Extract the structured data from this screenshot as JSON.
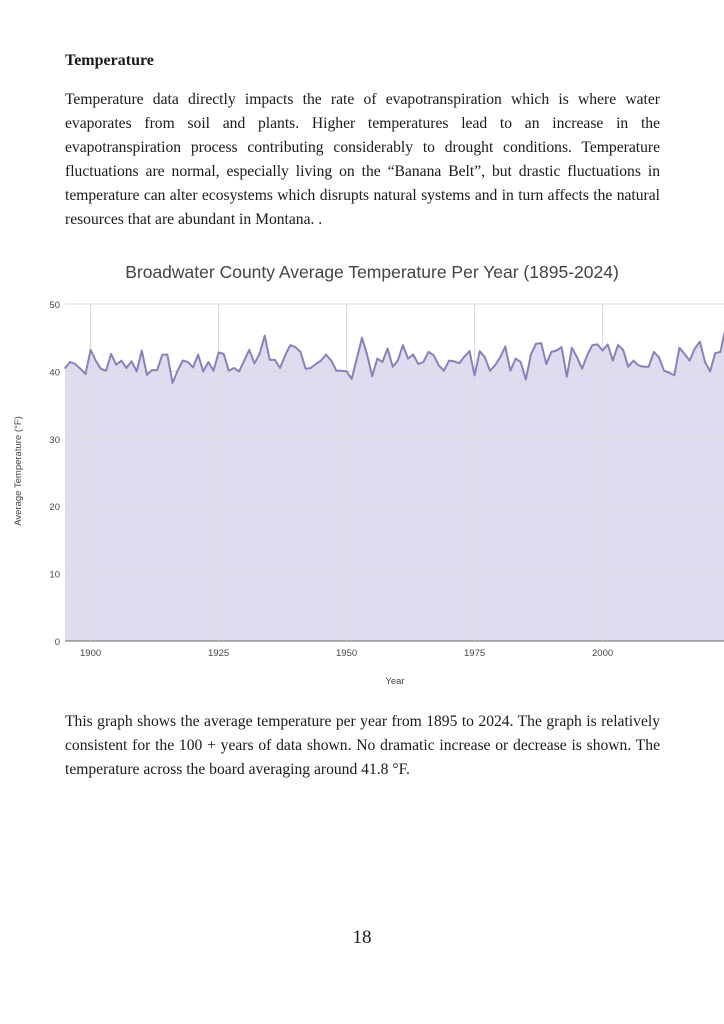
{
  "heading": "Temperature",
  "paragraph1": "Temperature data directly impacts the rate of evapotranspiration which is where water evaporates from soil and plants. Higher temperatures lead to an increase in the evapotranspiration process contributing considerably to drought conditions. Temperature fluctuations are normal, especially living on the “Banana Belt”, but drastic fluctuations in temperature can alter ecosystems which disrupts natural systems and in turn affects the natural resources that are abundant in Montana. .",
  "paragraph2": "This graph shows the average temperature per year from 1895 to 2024. The graph is relatively consistent for the 100 + years of data shown. No dramatic increase or decrease is shown. The temperature across the board averaging  around 41.8 °F.",
  "page_number": "18",
  "colors": {
    "line": "#8a80bd",
    "fill": "#ddd8ee",
    "grid": "#d9d9d9",
    "axis_text": "#444444"
  },
  "chart_data": {
    "type": "area",
    "title": "Broadwater County Average Temperature Per Year (1895-2024)",
    "xlabel": "Year",
    "ylabel": "Average Temperature (°F)",
    "ylim": [
      0,
      50
    ],
    "yticks": [
      "0",
      "10",
      "20",
      "30",
      "40",
      "50"
    ],
    "xticks": [
      "1900",
      "1925",
      "1950",
      "1975",
      "2000"
    ],
    "grid": true,
    "x_start": 1895,
    "values": [
      40.5,
      41.4,
      41.1,
      40.4,
      39.6,
      43.2,
      41.6,
      40.4,
      40.1,
      42.6,
      41.0,
      41.6,
      40.5,
      41.5,
      40.0,
      43.1,
      39.5,
      40.2,
      40.2,
      42.5,
      42.5,
      38.3,
      40.1,
      41.6,
      41.4,
      40.6,
      42.5,
      40.0,
      41.4,
      40.1,
      42.8,
      42.6,
      40.1,
      40.5,
      40.0,
      41.6,
      43.2,
      41.2,
      42.6,
      45.3,
      41.7,
      41.7,
      40.5,
      42.4,
      43.9,
      43.6,
      42.9,
      40.4,
      40.5,
      41.1,
      41.6,
      42.5,
      41.6,
      40.1,
      40.1,
      40.0,
      38.9,
      41.9,
      45.0,
      42.5,
      39.3,
      41.9,
      41.4,
      43.4,
      40.7,
      41.6,
      43.9,
      41.9,
      42.5,
      41.1,
      41.4,
      42.9,
      42.4,
      40.9,
      40.1,
      41.6,
      41.5,
      41.2,
      42.2,
      43.0,
      39.4,
      43.0,
      42.1,
      40.1,
      40.9,
      42.1,
      43.7,
      40.1,
      41.9,
      41.4,
      38.8,
      42.5,
      44.1,
      44.2,
      41.1,
      42.9,
      43.1,
      43.6,
      39.2,
      43.5,
      42.1,
      40.4,
      42.4,
      43.9,
      44.0,
      43.1,
      44.0,
      41.6,
      43.9,
      43.2,
      40.7,
      41.6,
      40.9,
      40.7,
      40.7,
      42.9,
      42.1,
      40.1,
      39.8,
      39.4,
      43.5,
      42.6,
      41.6,
      43.4,
      44.4,
      41.4,
      40.0,
      42.7,
      42.9,
      46.4
    ]
  }
}
